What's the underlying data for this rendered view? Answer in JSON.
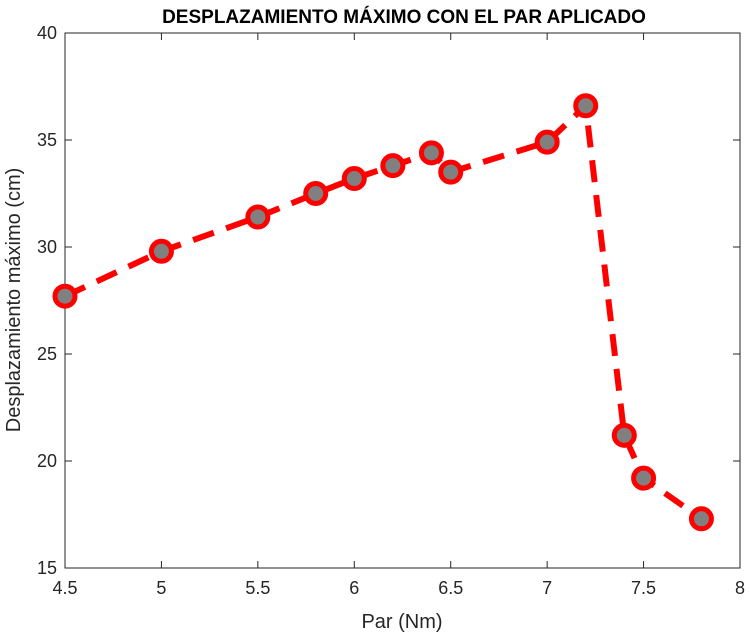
{
  "chart_data": {
    "type": "line",
    "title": "DESPLAZAMIENTO MÁXIMO CON EL PAR APLICADO",
    "xlabel": "Par (Nm)",
    "ylabel": "Desplazamiento máximo (cm)",
    "xlim": [
      4.5,
      8
    ],
    "ylim": [
      15,
      40
    ],
    "xticks": [
      4.5,
      5,
      5.5,
      6,
      6.5,
      7,
      7.5,
      8
    ],
    "xtick_labels": [
      "4.5",
      "5",
      "5.5",
      "6",
      "6.5",
      "7",
      "7.5",
      "8"
    ],
    "yticks": [
      15,
      20,
      25,
      30,
      35,
      40
    ],
    "ytick_labels": [
      "15",
      "20",
      "25",
      "30",
      "35",
      "40"
    ],
    "grid": false,
    "legend": "none",
    "series": [
      {
        "line_style": "dashed",
        "line_color": "#ff0000",
        "marker": "circle",
        "marker_edge_color": "#ff0000",
        "marker_face_color": "#808080",
        "x": [
          4.5,
          5.0,
          5.5,
          5.8,
          6.0,
          6.2,
          6.4,
          6.5,
          7.0,
          7.2,
          7.4,
          7.5,
          7.8
        ],
        "y": [
          27.7,
          29.8,
          31.4,
          32.5,
          33.2,
          33.8,
          34.4,
          33.5,
          34.9,
          36.6,
          21.2,
          19.2,
          17.3
        ]
      }
    ]
  }
}
